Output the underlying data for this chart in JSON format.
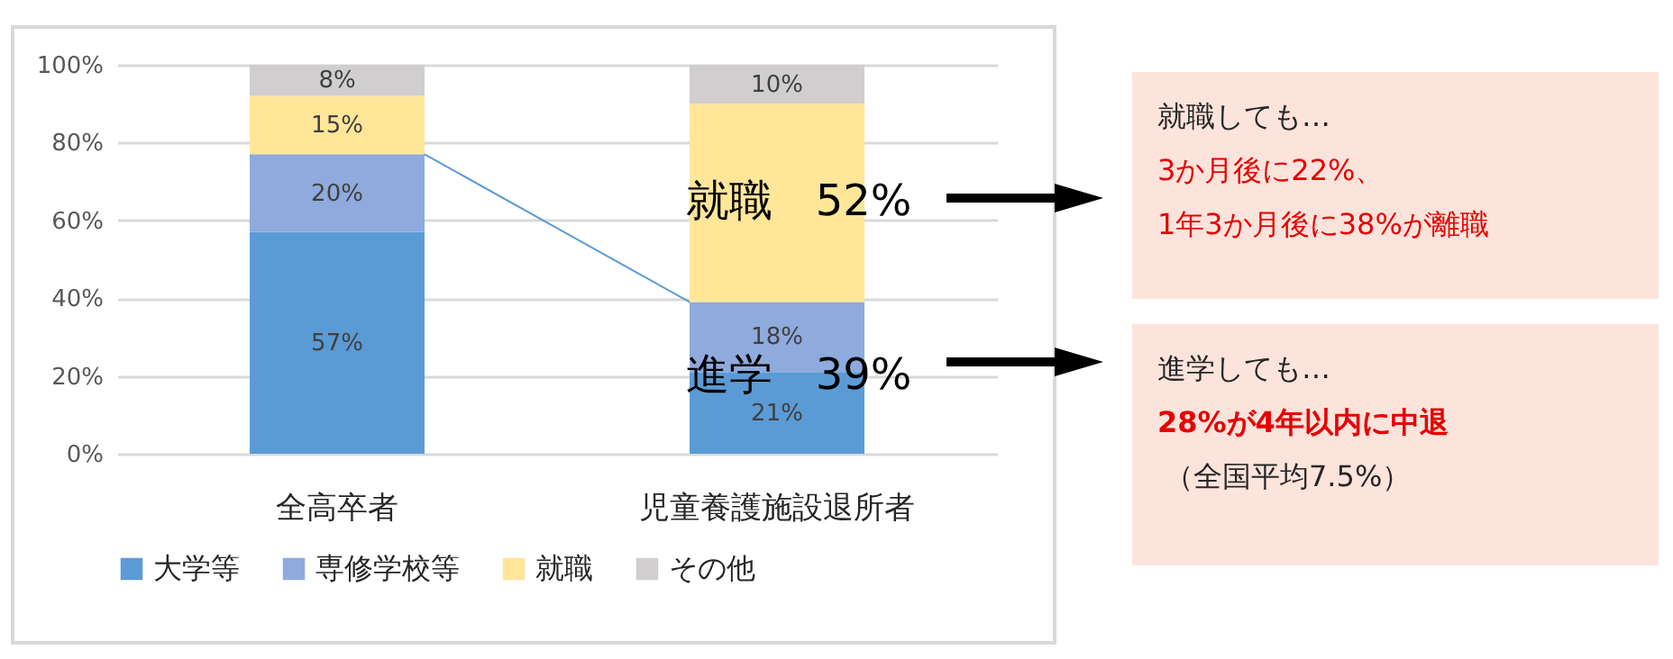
{
  "chart_data": {
    "type": "bar",
    "stacked": true,
    "categories": [
      "全高卒者",
      "児童養護施設退所者"
    ],
    "series": [
      {
        "name": "大学等",
        "color": "#5b9bd5",
        "values": [
          57,
          21
        ],
        "value_labels": [
          "57%",
          "21%"
        ]
      },
      {
        "name": "専修学校等",
        "color": "#8faadc",
        "values": [
          20,
          18
        ],
        "value_labels": [
          "20%",
          "18%"
        ]
      },
      {
        "name": "就職",
        "color": "#ffe699",
        "values": [
          15,
          51
        ],
        "value_labels": [
          "15%",
          null
        ]
      },
      {
        "name": "その他",
        "color": "#d0cece",
        "values": [
          8,
          10
        ],
        "value_labels": [
          "8%",
          "10%"
        ]
      }
    ],
    "ylim": [
      0,
      100
    ],
    "yticks": [
      {
        "value": 0,
        "label": "0%"
      },
      {
        "value": 20,
        "label": "20%"
      },
      {
        "value": 40,
        "label": "40%"
      },
      {
        "value": 60,
        "label": "60%"
      },
      {
        "value": 80,
        "label": "80%"
      },
      {
        "value": 100,
        "label": "100%"
      }
    ],
    "grid": "y",
    "legend": "bottom",
    "annotations": [
      "就職　52%",
      {
        "text": "進学　39%",
        "x": "児童養護施設退所者",
        "y": 39
      },
      "就職しても…",
      "3か月後に22%、",
      "1年3か月後に38%が離職",
      "進学しても…",
      "28%が4年以内に中退",
      "（全国平均7.5%）"
    ]
  }
}
